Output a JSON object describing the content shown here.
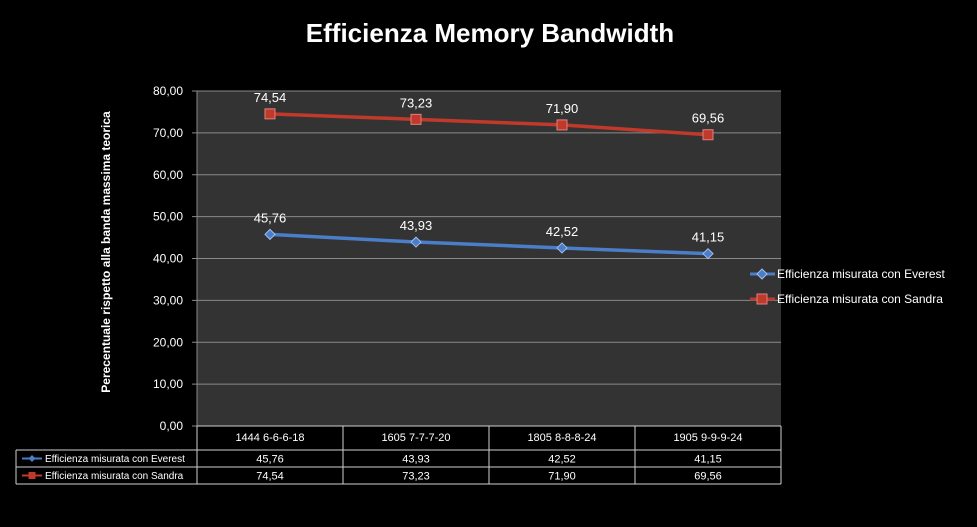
{
  "chart_data": {
    "type": "line",
    "title": "Efficienza Memory  Bandwidth",
    "ylabel": "Perecentuale rispetto alla banda  massima teorica",
    "xlabel": "",
    "ylim": [
      0,
      80
    ],
    "yticks": [
      "0,00",
      "10,00",
      "20,00",
      "30,00",
      "40,00",
      "50,00",
      "60,00",
      "70,00",
      "80,00"
    ],
    "categories": [
      "1444 6-6-6-18",
      "1605 7-7-7-20",
      "1805 8-8-8-24",
      "1905 9-9-9-24"
    ],
    "grid": true,
    "legend_position": "right",
    "data_table": true,
    "series": [
      {
        "name": "Efficienza misurata con Everest",
        "color": "#4a7ec8",
        "marker": "diamond",
        "values": [
          45.76,
          43.93,
          42.52,
          41.15
        ],
        "labels": [
          "45,76",
          "43,93",
          "42,52",
          "41,15"
        ]
      },
      {
        "name": "Efficienza misurata con Sandra",
        "color": "#c0392b",
        "marker": "square",
        "values": [
          74.54,
          73.23,
          71.9,
          69.56
        ],
        "labels": [
          "74,54",
          "73,23",
          "71,90",
          "69,56"
        ]
      }
    ]
  }
}
